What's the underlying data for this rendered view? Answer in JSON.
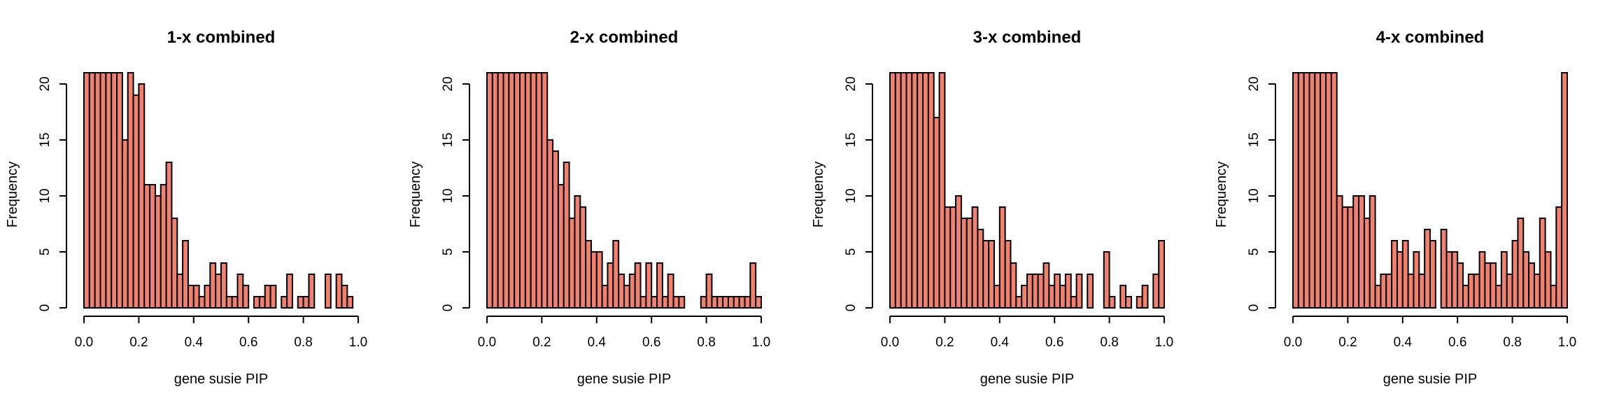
{
  "chart_data": [
    {
      "type": "bar",
      "title": "1-x combined",
      "xlabel": "gene susie PIP",
      "ylabel": "Frequency",
      "xlim": [
        0,
        1
      ],
      "ylim": [
        0,
        20
      ],
      "bin_width": 0.02,
      "x_ticks": [
        "0.0",
        "0.2",
        "0.4",
        "0.6",
        "0.8",
        "1.0"
      ],
      "y_ticks": [
        "0",
        "5",
        "10",
        "15",
        "20"
      ],
      "bar_color": "#f08070",
      "values": [
        21,
        21,
        21,
        21,
        21,
        21,
        21,
        15,
        21,
        19,
        20,
        11,
        11,
        10,
        11,
        13,
        8,
        3,
        6,
        2,
        2,
        1,
        2,
        4,
        3,
        4,
        1,
        1,
        3,
        2,
        0,
        1,
        1,
        2,
        2,
        0,
        1,
        3,
        0,
        1,
        1,
        3,
        0,
        0,
        3,
        0,
        3,
        2,
        1,
        0
      ]
    },
    {
      "type": "bar",
      "title": "2-x combined",
      "xlabel": "gene susie PIP",
      "ylabel": "Frequency",
      "xlim": [
        0,
        1
      ],
      "ylim": [
        0,
        20
      ],
      "bin_width": 0.02,
      "x_ticks": [
        "0.0",
        "0.2",
        "0.4",
        "0.6",
        "0.8",
        "1.0"
      ],
      "y_ticks": [
        "0",
        "5",
        "10",
        "15",
        "20"
      ],
      "bar_color": "#f08070",
      "values": [
        21,
        21,
        21,
        21,
        21,
        21,
        21,
        21,
        21,
        21,
        21,
        15,
        14,
        11,
        13,
        8,
        10,
        9,
        6,
        5,
        5,
        2,
        4,
        6,
        3,
        2,
        3,
        4,
        1,
        4,
        1,
        4,
        1,
        3,
        1,
        1,
        0,
        0,
        0,
        1,
        3,
        1,
        1,
        1,
        1,
        1,
        1,
        1,
        4,
        1
      ]
    },
    {
      "type": "bar",
      "title": "3-x combined",
      "xlabel": "gene susie PIP",
      "ylabel": "Frequency",
      "xlim": [
        0,
        1
      ],
      "ylim": [
        0,
        20
      ],
      "bin_width": 0.02,
      "x_ticks": [
        "0.0",
        "0.2",
        "0.4",
        "0.6",
        "0.8",
        "1.0"
      ],
      "y_ticks": [
        "0",
        "5",
        "10",
        "15",
        "20"
      ],
      "bar_color": "#f08070",
      "values": [
        21,
        21,
        21,
        21,
        21,
        21,
        21,
        21,
        17,
        21,
        9,
        9,
        10,
        8,
        8,
        9,
        7,
        6,
        6,
        2,
        9,
        6,
        4,
        1,
        2,
        3,
        3,
        3,
        4,
        2,
        3,
        2,
        3,
        1,
        3,
        0,
        3,
        0,
        0,
        5,
        1,
        0,
        2,
        1,
        0,
        1,
        2,
        0,
        3,
        6
      ]
    },
    {
      "type": "bar",
      "title": "4-x combined",
      "xlabel": "gene susie PIP",
      "ylabel": "Frequency",
      "xlim": [
        0,
        1
      ],
      "ylim": [
        0,
        20
      ],
      "bin_width": 0.02,
      "x_ticks": [
        "0.0",
        "0.2",
        "0.4",
        "0.6",
        "0.8",
        "1.0"
      ],
      "y_ticks": [
        "0",
        "5",
        "10",
        "15",
        "20"
      ],
      "bar_color": "#f08070",
      "values": [
        21,
        21,
        21,
        21,
        21,
        21,
        21,
        21,
        10,
        9,
        9,
        10,
        10,
        8,
        10,
        2,
        3,
        3,
        6,
        5,
        6,
        3,
        5,
        3,
        7,
        6,
        0,
        7,
        5,
        5,
        4,
        2,
        3,
        3,
        5,
        4,
        4,
        2,
        5,
        3,
        6,
        8,
        5,
        4,
        3,
        8,
        5,
        2,
        9,
        21
      ]
    }
  ]
}
